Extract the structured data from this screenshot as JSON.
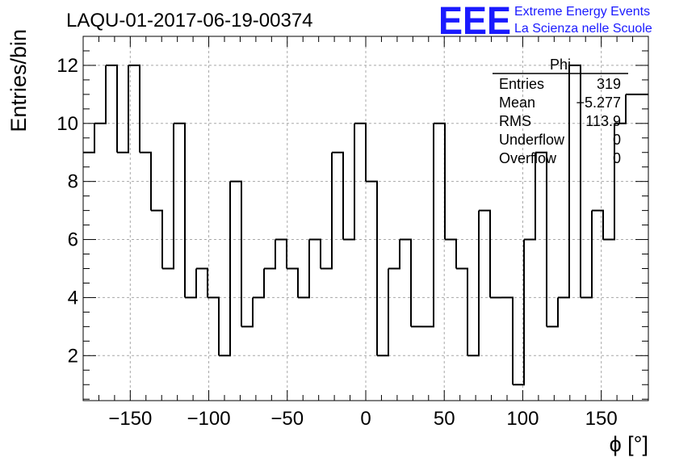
{
  "title": "LAQU-01-2017-06-19-00374",
  "logo": {
    "text": "EEE",
    "line1": "Extreme Energy Events",
    "line2": "La Scienza nelle Scuole",
    "color": "#1a1aff"
  },
  "stats": {
    "name": "Phi",
    "rows": [
      {
        "label": "Entries",
        "value": "319"
      },
      {
        "label": "Mean",
        "value": "−5.277"
      },
      {
        "label": "RMS",
        "value": "113.9"
      },
      {
        "label": "Underflow",
        "value": "0"
      },
      {
        "label": "Overflow",
        "value": "0"
      }
    ]
  },
  "chart_data": {
    "type": "bar",
    "style": "step-histogram",
    "title": "LAQU-01-2017-06-19-00374",
    "xlabel": "ϕ [°]",
    "ylabel": "Entries/bin",
    "xlim": [
      -180,
      180
    ],
    "ylim": [
      0.45,
      13.0
    ],
    "grid": true,
    "bin_width": 7.2,
    "x_ticks": [
      -150,
      -100,
      -50,
      0,
      50,
      100,
      150
    ],
    "x_tick_labels": [
      "−150",
      "−100",
      "−50",
      "0",
      "50",
      "100",
      "150"
    ],
    "y_ticks": [
      2,
      4,
      6,
      8,
      10,
      12
    ],
    "y_tick_labels": [
      "2",
      "4",
      "6",
      "8",
      "10",
      "12"
    ],
    "bin_edges": [
      -180,
      -172.8,
      -165.6,
      -158.4,
      -151.2,
      -144,
      -136.8,
      -129.6,
      -122.4,
      -115.2,
      -108,
      -100.8,
      -93.6,
      -86.4,
      -79.2,
      -72,
      -64.8,
      -57.6,
      -50.4,
      -43.2,
      -36,
      -28.8,
      -21.6,
      -14.4,
      -7.2,
      0,
      7.2,
      14.4,
      21.6,
      28.8,
      36,
      43.2,
      50.4,
      57.6,
      64.8,
      72,
      79.2,
      86.4,
      93.6,
      100.8,
      108,
      115.2,
      122.4,
      129.6,
      136.8,
      144,
      151.2,
      158.4,
      165.6,
      172.8,
      180
    ],
    "values": [
      9,
      10,
      12,
      9,
      12,
      9,
      7,
      5,
      10,
      4,
      5,
      4,
      2,
      8,
      3,
      4,
      5,
      6,
      5,
      4,
      6,
      5,
      9,
      6,
      10,
      8,
      2,
      5,
      6,
      3,
      3,
      10,
      6,
      5,
      2,
      7,
      4,
      4,
      1,
      6,
      9,
      3,
      4,
      12,
      4,
      7,
      6,
      10,
      11,
      11
    ]
  }
}
